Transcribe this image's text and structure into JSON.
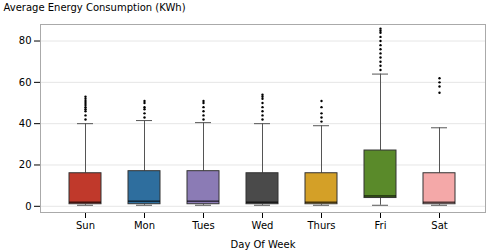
{
  "chart_data": {
    "type": "box",
    "xlabel": "Day Of Week",
    "ylabel": "Average Energy Consumption (KWh)",
    "categories": [
      "Sun",
      "Mon",
      "Tues",
      "Wed",
      "Thurs",
      "Fri",
      "Sat"
    ],
    "colors": [
      "#C0392B",
      "#2E6E9E",
      "#8B7BB5",
      "#4A4A4A",
      "#D4A027",
      "#5A8A2A",
      "#F4A8A8"
    ],
    "box_stats": [
      {
        "q1": 1.0,
        "median": 2.0,
        "q3": 16.0,
        "whislo": 0.5,
        "whishi": 40.0,
        "fliers": [
          42,
          44,
          46,
          47,
          48,
          49,
          50,
          51,
          52,
          53
        ]
      },
      {
        "q1": 1.0,
        "median": 2.5,
        "q3": 17.0,
        "whislo": 0.5,
        "whishi": 41.5,
        "fliers": [
          43,
          45,
          47,
          48,
          50,
          51
        ]
      },
      {
        "q1": 1.0,
        "median": 2.5,
        "q3": 17.0,
        "whislo": 0.5,
        "whishi": 40.5,
        "fliers": [
          42,
          44,
          46,
          48,
          50,
          51
        ]
      },
      {
        "q1": 1.0,
        "median": 2.0,
        "q3": 16.0,
        "whislo": 0.5,
        "whishi": 40.0,
        "fliers": [
          42,
          44,
          46,
          48,
          50,
          52,
          53,
          54
        ]
      },
      {
        "q1": 1.0,
        "median": 2.0,
        "q3": 16.0,
        "whislo": 0.5,
        "whishi": 39.0,
        "fliers": [
          41,
          43,
          45,
          48,
          51
        ]
      },
      {
        "q1": 4.0,
        "median": 5.0,
        "q3": 27.0,
        "whislo": 0.5,
        "whishi": 64.0,
        "fliers": [
          66,
          68,
          70,
          72,
          74,
          76,
          78,
          80,
          82,
          84,
          85,
          86
        ]
      },
      {
        "q1": 1.0,
        "median": 2.0,
        "q3": 16.0,
        "whislo": 0.5,
        "whishi": 38.0,
        "fliers": [
          55,
          58,
          60,
          62
        ]
      }
    ],
    "ylim": [
      -3,
      88
    ],
    "yticks": [
      0,
      20,
      40,
      60,
      80
    ],
    "grid": true
  }
}
